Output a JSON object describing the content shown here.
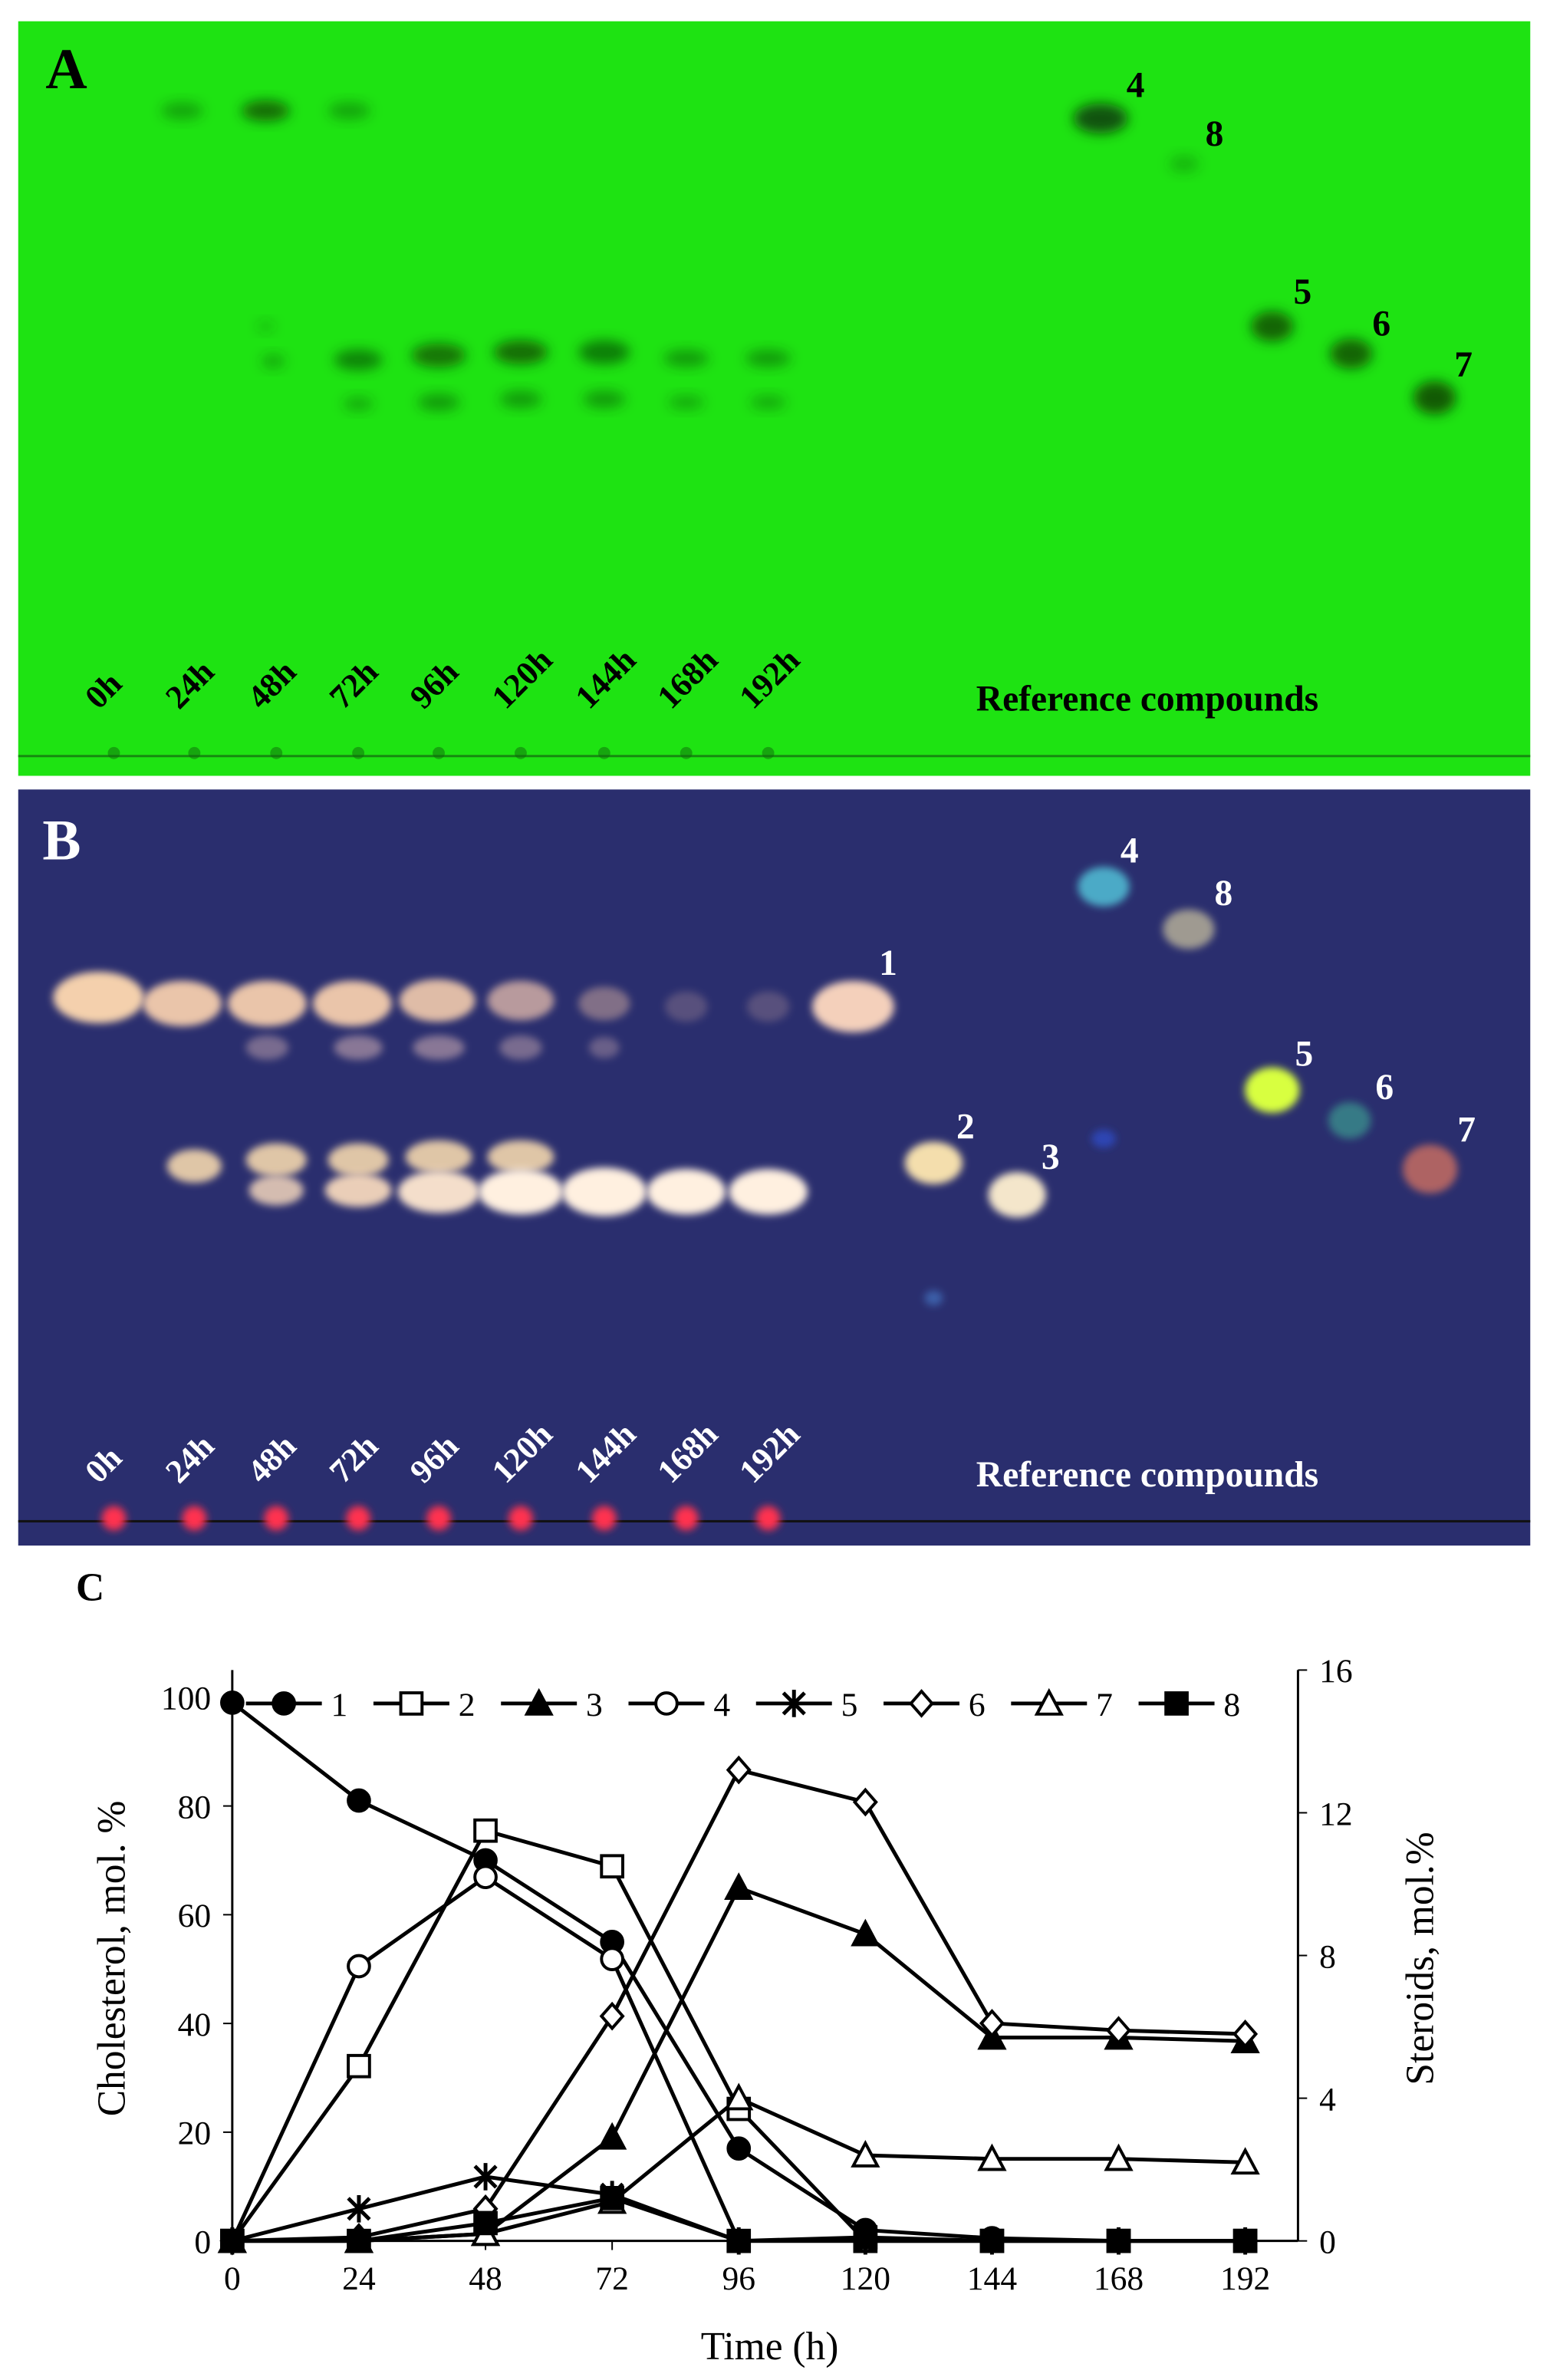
{
  "panel_a": {
    "label": "A",
    "lanes": [
      "0h",
      "24h",
      "48h",
      "72h",
      "96h",
      "120h",
      "144h",
      "168h",
      "192h"
    ],
    "reference_label": "Reference compounds",
    "spot_labels": [
      "4",
      "8",
      "5",
      "6",
      "7"
    ]
  },
  "panel_b": {
    "label": "B",
    "lanes": [
      "0h",
      "24h",
      "48h",
      "72h",
      "96h",
      "120h",
      "144h",
      "168h",
      "192h"
    ],
    "reference_label": "Reference compounds",
    "spot_labels": [
      "1",
      "2",
      "3",
      "4",
      "8",
      "5",
      "6",
      "7"
    ]
  },
  "chart_data": {
    "type": "line",
    "label": "C",
    "x_label": "Time (h)",
    "y_label": "Cholesterol, mol. %",
    "y2_label": "Steroids, mol.%",
    "x": [
      0,
      24,
      48,
      72,
      96,
      120,
      144,
      168,
      192
    ],
    "xlim": [
      0,
      202
    ],
    "xticks": [
      0,
      24,
      48,
      72,
      96,
      120,
      144,
      168,
      192
    ],
    "ylim": [
      0,
      105
    ],
    "yticks": [
      0,
      20,
      40,
      60,
      80,
      100
    ],
    "y2lim": [
      0,
      16
    ],
    "y2ticks": [
      0,
      4,
      8,
      12,
      16
    ],
    "series": [
      {
        "name": "1",
        "color": "#000000",
        "marker": "circle-filled",
        "axis": "y",
        "values": [
          99,
          81,
          70,
          55,
          17,
          2,
          0.5,
          0,
          0
        ]
      },
      {
        "name": "2",
        "color": "#000000",
        "marker": "square-open",
        "axis": "y2",
        "values": [
          0,
          4.9,
          11.5,
          10.5,
          3.7,
          0,
          0,
          0,
          0
        ]
      },
      {
        "name": "3",
        "color": "#000000",
        "marker": "triangle-filled",
        "axis": "y2",
        "values": [
          0,
          0,
          0.2,
          2.9,
          9.9,
          8.6,
          5.7,
          5.7,
          5.6
        ]
      },
      {
        "name": "4",
        "color": "#000000",
        "marker": "circle-open",
        "axis": "y2",
        "values": [
          0,
          7.7,
          10.2,
          7.9,
          0,
          0,
          0,
          0,
          0
        ]
      },
      {
        "name": "5",
        "color": "#000000",
        "marker": "star",
        "axis": "y2",
        "values": [
          0,
          0.9,
          1.8,
          1.3,
          0,
          0,
          0,
          0,
          0
        ]
      },
      {
        "name": "6",
        "color": "#000000",
        "marker": "diamond-open",
        "axis": "y2",
        "values": [
          0,
          0.1,
          0.9,
          6.3,
          13.2,
          12.3,
          6.1,
          5.9,
          5.8
        ]
      },
      {
        "name": "7",
        "color": "#000000",
        "marker": "triangle-open",
        "axis": "y2",
        "values": [
          0,
          0,
          0.2,
          1.1,
          4.0,
          2.4,
          2.3,
          2.3,
          2.2
        ]
      },
      {
        "name": "8",
        "color": "#000000",
        "marker": "square-filled",
        "axis": "y2",
        "values": [
          0,
          0,
          0.5,
          1.2,
          0,
          0.1,
          0,
          0,
          0
        ]
      }
    ]
  }
}
